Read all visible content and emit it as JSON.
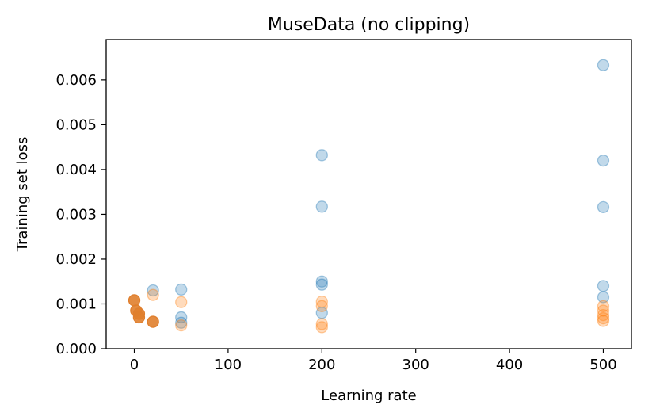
{
  "chart_data": {
    "type": "scatter",
    "title": "MuseData (no clipping)",
    "xlabel": "Learning rate",
    "ylabel": "Training set loss",
    "xlim": [
      -30,
      530
    ],
    "ylim": [
      0.0,
      0.0069
    ],
    "xticks": [
      0,
      100,
      200,
      300,
      400,
      500
    ],
    "xtick_labels": [
      "0",
      "100",
      "200",
      "300",
      "400",
      "500"
    ],
    "yticks": [
      0.0,
      0.001,
      0.002,
      0.003,
      0.004,
      0.005,
      0.006
    ],
    "ytick_labels": [
      "0.000",
      "0.001",
      "0.002",
      "0.003",
      "0.004",
      "0.005",
      "0.006"
    ],
    "grid": false,
    "series": [
      {
        "color": "#1f77b4",
        "alpha": 0.28,
        "points": [
          {
            "x": 20,
            "y": 0.0013
          },
          {
            "x": 50,
            "y": 0.00132
          },
          {
            "x": 50,
            "y": 0.0007
          },
          {
            "x": 50,
            "y": 0.00058
          },
          {
            "x": 200,
            "y": 0.00432
          },
          {
            "x": 200,
            "y": 0.00317
          },
          {
            "x": 200,
            "y": 0.0015
          },
          {
            "x": 200,
            "y": 0.00143
          },
          {
            "x": 200,
            "y": 0.0008
          },
          {
            "x": 500,
            "y": 0.00633
          },
          {
            "x": 500,
            "y": 0.0042
          },
          {
            "x": 500,
            "y": 0.00316
          },
          {
            "x": 500,
            "y": 0.0014
          },
          {
            "x": 500,
            "y": 0.00115
          }
        ]
      },
      {
        "color": "#ff7f0e",
        "alpha": 0.28,
        "points": [
          {
            "x": 20,
            "y": 0.0012
          },
          {
            "x": 50,
            "y": 0.00104
          },
          {
            "x": 50,
            "y": 0.00052
          },
          {
            "x": 200,
            "y": 0.00105
          },
          {
            "x": 200,
            "y": 0.00095
          },
          {
            "x": 200,
            "y": 0.00055
          },
          {
            "x": 200,
            "y": 0.00048
          },
          {
            "x": 500,
            "y": 0.00095
          },
          {
            "x": 500,
            "y": 0.00085
          },
          {
            "x": 500,
            "y": 0.00075
          },
          {
            "x": 500,
            "y": 0.00068
          },
          {
            "x": 500,
            "y": 0.00062
          }
        ]
      },
      {
        "color": "#e07f2e",
        "alpha": 0.9,
        "points": [
          {
            "x": 0,
            "y": 0.00108
          },
          {
            "x": 2,
            "y": 0.00085
          },
          {
            "x": 5,
            "y": 0.00078
          },
          {
            "x": 5,
            "y": 0.0007
          },
          {
            "x": 20,
            "y": 0.0006
          }
        ]
      }
    ]
  }
}
